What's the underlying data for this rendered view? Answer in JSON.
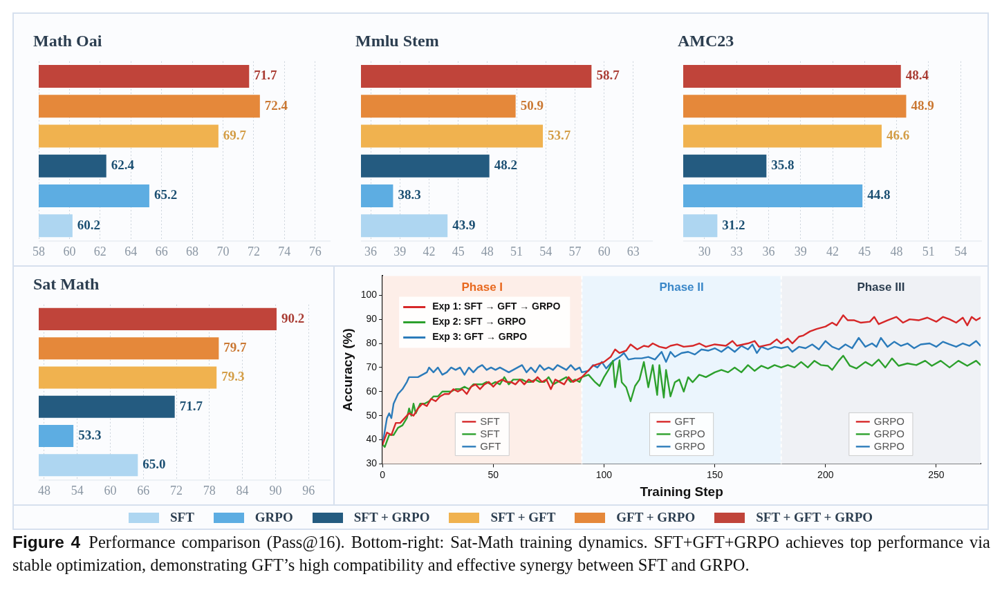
{
  "chart_data": [
    {
      "type": "bar",
      "title": "Math Oai",
      "orientation": "horizontal",
      "categories": [
        null,
        null,
        null,
        null,
        null,
        null
      ],
      "xlim": [
        58,
        77
      ],
      "xticks": [
        58,
        60,
        62,
        64,
        66,
        68,
        70,
        72,
        74,
        76
      ],
      "grid": "x",
      "tick_labels": "x",
      "legend": "bottom",
      "series": [
        {
          "name": "SFT + GFT + GRPO",
          "color": "#c0443a",
          "values": [
            71.7,
            null,
            null,
            null,
            null,
            null
          ],
          "value_labels": [
            "71.7",
            null,
            null,
            null,
            null,
            null
          ]
        },
        {
          "name": "GFT + GRPO",
          "color": "#e5883a",
          "values": [
            null,
            72.4,
            null,
            null,
            null,
            null
          ],
          "value_labels": [
            null,
            "72.4",
            null,
            null,
            null,
            null
          ]
        },
        {
          "name": "SFT + GFT",
          "color": "#f0b24f",
          "values": [
            null,
            null,
            69.7,
            null,
            null,
            null
          ],
          "value_labels": [
            null,
            null,
            "69.7",
            null,
            null,
            null
          ]
        },
        {
          "name": "SFT + GRPO",
          "color": "#245b80",
          "values": [
            null,
            null,
            null,
            62.4,
            null,
            null
          ],
          "value_labels": [
            null,
            null,
            null,
            "62.4",
            null,
            null
          ]
        },
        {
          "name": "GRPO",
          "color": "#5dade2",
          "values": [
            null,
            null,
            null,
            null,
            65.2,
            null
          ],
          "value_labels": [
            null,
            null,
            null,
            null,
            "65.2",
            null
          ]
        },
        {
          "name": "SFT",
          "color": "#aed6f1",
          "values": [
            null,
            null,
            null,
            null,
            null,
            60.2
          ],
          "value_labels": [
            null,
            null,
            null,
            null,
            null,
            "60.2"
          ]
        }
      ]
    },
    {
      "type": "bar",
      "title": "Mmlu Stem",
      "orientation": "horizontal",
      "categories": [
        null,
        null,
        null,
        null,
        null,
        null
      ],
      "xlim": [
        35,
        65
      ],
      "xticks": [
        36,
        39,
        42,
        45,
        48,
        51,
        54,
        57,
        60,
        63
      ],
      "grid": "x",
      "tick_labels": "x",
      "series": [
        {
          "color": "#c0443a",
          "values": [
            58.7,
            null,
            null,
            null,
            null,
            null
          ],
          "value_labels": [
            "58.7",
            null,
            null,
            null,
            null,
            null
          ]
        },
        {
          "color": "#e5883a",
          "values": [
            null,
            50.9,
            null,
            null,
            null,
            null
          ],
          "value_labels": [
            null,
            "50.9",
            null,
            null,
            null,
            null
          ]
        },
        {
          "color": "#f0b24f",
          "values": [
            null,
            null,
            53.7,
            null,
            null,
            null
          ],
          "value_labels": [
            null,
            null,
            "53.7",
            null,
            null,
            null
          ]
        },
        {
          "color": "#245b80",
          "values": [
            null,
            null,
            null,
            48.2,
            null,
            null
          ],
          "value_labels": [
            null,
            null,
            null,
            "48.2",
            null,
            null
          ]
        },
        {
          "color": "#5dade2",
          "values": [
            null,
            null,
            null,
            null,
            38.3,
            null
          ],
          "value_labels": [
            null,
            null,
            null,
            null,
            "38.3",
            null
          ]
        },
        {
          "color": "#aed6f1",
          "values": [
            null,
            null,
            null,
            null,
            null,
            43.9
          ],
          "value_labels": [
            null,
            null,
            null,
            null,
            null,
            "43.9"
          ]
        }
      ]
    },
    {
      "type": "bar",
      "title": "AMC23",
      "orientation": "horizontal",
      "categories": [
        null,
        null,
        null,
        null,
        null,
        null
      ],
      "xlim": [
        28,
        56
      ],
      "xticks": [
        30,
        33,
        36,
        39,
        42,
        45,
        48,
        51,
        54
      ],
      "grid": "x",
      "tick_labels": "x",
      "series": [
        {
          "color": "#c0443a",
          "values": [
            48.4,
            null,
            null,
            null,
            null,
            null
          ],
          "value_labels": [
            "48.4",
            null,
            null,
            null,
            null,
            null
          ]
        },
        {
          "color": "#e5883a",
          "values": [
            null,
            48.9,
            null,
            null,
            null,
            null
          ],
          "value_labels": [
            null,
            "48.9",
            null,
            null,
            null,
            null
          ]
        },
        {
          "color": "#f0b24f",
          "values": [
            null,
            null,
            46.6,
            null,
            null,
            null
          ],
          "value_labels": [
            null,
            null,
            "46.6",
            null,
            null,
            null
          ]
        },
        {
          "color": "#245b80",
          "values": [
            null,
            null,
            null,
            35.8,
            null,
            null
          ],
          "value_labels": [
            null,
            null,
            null,
            "35.8",
            null,
            null
          ]
        },
        {
          "color": "#5dade2",
          "values": [
            null,
            null,
            null,
            null,
            44.8,
            null
          ],
          "value_labels": [
            null,
            null,
            null,
            null,
            "44.8",
            null
          ]
        },
        {
          "color": "#aed6f1",
          "values": [
            null,
            null,
            null,
            null,
            null,
            31.2
          ],
          "value_labels": [
            null,
            null,
            null,
            null,
            null,
            "31.2"
          ]
        }
      ]
    },
    {
      "type": "bar",
      "title": "Sat Math",
      "orientation": "horizontal",
      "categories": [
        null,
        null,
        null,
        null,
        null,
        null
      ],
      "xlim": [
        47,
        100
      ],
      "xticks": [
        48,
        54,
        60,
        66,
        72,
        78,
        84,
        90,
        96
      ],
      "grid": "x",
      "tick_labels": "x",
      "series": [
        {
          "color": "#c0443a",
          "values": [
            90.2,
            null,
            null,
            null,
            null,
            null
          ],
          "value_labels": [
            "90.2",
            null,
            null,
            null,
            null,
            null
          ]
        },
        {
          "color": "#e5883a",
          "values": [
            null,
            79.7,
            null,
            null,
            null,
            null
          ],
          "value_labels": [
            null,
            "79.7",
            null,
            null,
            null,
            null
          ]
        },
        {
          "color": "#f0b24f",
          "values": [
            null,
            null,
            79.3,
            null,
            null,
            null
          ],
          "value_labels": [
            null,
            null,
            "79.3",
            null,
            null,
            null
          ]
        },
        {
          "color": "#245b80",
          "values": [
            null,
            null,
            null,
            71.7,
            null,
            null
          ],
          "value_labels": [
            null,
            null,
            null,
            "71.7",
            null,
            null
          ]
        },
        {
          "color": "#5dade2",
          "values": [
            null,
            null,
            null,
            null,
            53.3,
            null
          ],
          "value_labels": [
            null,
            null,
            null,
            null,
            "53.3",
            null
          ]
        },
        {
          "color": "#aed6f1",
          "values": [
            null,
            null,
            null,
            null,
            null,
            65.0
          ],
          "value_labels": [
            null,
            null,
            null,
            null,
            null,
            "65.0"
          ]
        }
      ]
    },
    {
      "type": "line",
      "xlabel": "Training Step",
      "ylabel": "Accuracy (%)",
      "xlim": [
        0,
        270
      ],
      "xticks": [
        0,
        50,
        100,
        150,
        200,
        250
      ],
      "ylim": [
        30,
        108
      ],
      "yticks": [
        30,
        40,
        50,
        60,
        70,
        80,
        90,
        100
      ],
      "legend": "top left",
      "marker": "none",
      "line_style": "solid",
      "ref_lines": [
        {
          "axis": "x",
          "value": 90,
          "color": "#ffffff",
          "line_style": "dashed"
        },
        {
          "axis": "x",
          "value": 180,
          "color": "#ffffff",
          "line_style": "dashed"
        }
      ],
      "bands": [
        {
          "axis": "x",
          "from": 0,
          "to": 90,
          "label": "Phase I",
          "color": "#fdeee8"
        },
        {
          "axis": "x",
          "from": 90,
          "to": 180,
          "label": "Phase II",
          "color": "#ebf5fd"
        },
        {
          "axis": "x",
          "from": 180,
          "to": 270,
          "label": "Phase III",
          "color": "#eff1f5"
        }
      ],
      "series": [
        {
          "name": "Exp 1: SFT → GFT → GRPO",
          "color": "#d62728",
          "x": [
            0,
            2,
            4,
            6,
            8,
            10,
            12,
            14,
            16,
            18,
            20,
            22,
            24,
            26,
            28,
            30,
            32,
            34,
            36,
            38,
            40,
            42,
            44,
            46,
            48,
            50,
            52,
            54,
            56,
            58,
            60,
            62,
            64,
            66,
            68,
            70,
            72,
            74,
            76,
            78,
            80,
            82,
            84,
            86,
            88,
            90,
            95,
            100,
            103,
            105,
            107,
            110,
            112,
            115,
            118,
            120,
            122,
            125,
            128,
            130,
            133,
            136,
            140,
            143,
            146,
            150,
            155,
            158,
            160,
            165,
            168,
            170,
            175,
            178,
            180,
            183,
            185,
            188,
            190,
            193,
            196,
            200,
            203,
            205,
            208,
            210,
            213,
            216,
            220,
            222,
            224,
            228,
            232,
            235,
            238,
            242,
            246,
            250,
            253,
            256,
            259,
            262,
            264,
            266,
            268,
            270
          ],
          "values": [
            38,
            43,
            42,
            47,
            47,
            49,
            51,
            50,
            53,
            55,
            54,
            57,
            56,
            58,
            59,
            59,
            61,
            60,
            61,
            59,
            62,
            63,
            61,
            63,
            64,
            62,
            64,
            65,
            64,
            64,
            63,
            65,
            63,
            65,
            64,
            66,
            64,
            65,
            61,
            65,
            64,
            63,
            66,
            64,
            65,
            66,
            70.7,
            72.3,
            74.4,
            77.5,
            76,
            77,
            79.6,
            77.5,
            79,
            78.6,
            80,
            78.6,
            78,
            79,
            79.6,
            78.6,
            79,
            80,
            78.6,
            79.6,
            79,
            81,
            79,
            80,
            81,
            78.6,
            79.6,
            81.7,
            80,
            82,
            80,
            82.8,
            83.3,
            85,
            86,
            87,
            88.6,
            87.5,
            91.7,
            89.6,
            89.6,
            88.6,
            89,
            91,
            88,
            89.6,
            91,
            88.6,
            90,
            89.6,
            90.7,
            89,
            91,
            90,
            88.6,
            90.7,
            87.5,
            91,
            89.6,
            90.7
          ]
        },
        {
          "name": "Exp 2: SFT → GRPO",
          "color": "#2ca02c",
          "x": [
            0,
            1,
            3,
            5,
            7,
            9,
            11,
            12,
            13,
            14,
            15,
            17,
            19,
            21,
            23,
            25,
            27,
            29,
            31,
            33,
            35,
            37,
            39,
            41,
            43,
            45,
            47,
            49,
            51,
            53,
            55,
            57,
            59,
            61,
            63,
            65,
            67,
            69,
            71,
            73,
            75,
            77,
            79,
            81,
            83,
            85,
            87,
            89,
            90,
            93,
            96,
            98,
            100,
            102,
            104,
            105,
            107,
            108,
            110,
            112,
            114,
            116,
            118,
            120,
            122,
            124,
            125,
            127,
            128,
            130,
            132,
            134,
            136,
            138,
            140,
            143,
            146,
            150,
            153,
            156,
            159,
            162,
            165,
            168,
            171,
            174,
            177,
            180,
            183,
            186,
            189,
            192,
            195,
            198,
            201,
            203,
            206,
            208,
            211,
            214,
            218,
            221,
            224,
            227,
            230,
            233,
            237,
            241,
            245,
            248,
            252,
            256,
            260,
            264,
            268,
            270
          ],
          "values": [
            38,
            37,
            42,
            42,
            45,
            46,
            49,
            53,
            50,
            55,
            51,
            55,
            55,
            56,
            58,
            58,
            60,
            60,
            60,
            61,
            61,
            62,
            61,
            63,
            63,
            63,
            64,
            63,
            64,
            63,
            66,
            63,
            65,
            65,
            65,
            64,
            64,
            65,
            64,
            64,
            66,
            63,
            64,
            65,
            66,
            64,
            65,
            64,
            66,
            67,
            63.9,
            62.3,
            66,
            69,
            72.8,
            61.8,
            73,
            63.9,
            61.8,
            56,
            62.3,
            65,
            72.3,
            61.8,
            71,
            58.6,
            71,
            57.5,
            69,
            58,
            63.9,
            65,
            60,
            66,
            63.9,
            67,
            66,
            68,
            69,
            68,
            70,
            68,
            71,
            68.6,
            70.7,
            69.6,
            71,
            70,
            71,
            70,
            72.3,
            70,
            72.8,
            71,
            70.7,
            69,
            72.8,
            74.9,
            70.7,
            69.6,
            72.3,
            70.7,
            73.3,
            70,
            73.8,
            70.7,
            71.7,
            71,
            72.8,
            70.7,
            72.8,
            70,
            72.8,
            70.7,
            72.8,
            71
          ]
        },
        {
          "name": "Exp 3: GFT → GRPO",
          "color": "#2b7bba",
          "x": [
            0,
            2,
            3,
            4,
            5,
            7,
            9,
            11,
            12,
            14,
            16,
            18,
            20,
            21,
            23,
            25,
            27,
            29,
            31,
            33,
            35,
            37,
            39,
            41,
            43,
            45,
            47,
            49,
            51,
            53,
            55,
            57,
            59,
            61,
            63,
            65,
            67,
            69,
            71,
            73,
            75,
            77,
            79,
            81,
            83,
            85,
            87,
            89,
            90,
            93,
            95,
            97,
            99,
            101,
            103,
            105,
            107,
            109,
            111,
            114,
            117,
            120,
            123,
            126,
            128,
            130,
            132,
            135,
            138,
            141,
            144,
            147,
            150,
            153,
            156,
            159,
            162,
            165,
            167,
            169,
            171,
            174,
            177,
            180,
            183,
            185,
            188,
            191,
            194,
            197,
            200,
            203,
            206,
            209,
            212,
            215,
            218,
            221,
            223,
            225,
            228,
            231,
            234,
            237,
            240,
            243,
            247,
            250,
            253,
            256,
            259,
            262,
            265,
            268,
            270
          ],
          "values": [
            38,
            49,
            51,
            49,
            55,
            59,
            61,
            64,
            66,
            66,
            66,
            67,
            68,
            70,
            68,
            70,
            67,
            68,
            70,
            69,
            70,
            67,
            70,
            68,
            70,
            71,
            69,
            70,
            69,
            70,
            69,
            68,
            69,
            70,
            71,
            68,
            70,
            68,
            71,
            69,
            70,
            69,
            71,
            70,
            69,
            71,
            69,
            70,
            68,
            68.6,
            71,
            70,
            72.3,
            69.6,
            71.7,
            73.3,
            74.4,
            76,
            73.3,
            73.8,
            73.8,
            74.4,
            73.3,
            76.5,
            72.3,
            76.5,
            74.4,
            76,
            76.5,
            75.4,
            77.5,
            77,
            78,
            76.5,
            78.6,
            76.5,
            79,
            77.5,
            79.6,
            76,
            78.6,
            77.5,
            78.6,
            78,
            78.6,
            76.5,
            78.6,
            78,
            79.6,
            77.5,
            81,
            78.6,
            77.5,
            79.6,
            78,
            82.3,
            78.6,
            80,
            78.6,
            82.3,
            78.6,
            80.7,
            79,
            80,
            78,
            79.6,
            80,
            78.6,
            80.7,
            79.6,
            78.6,
            80,
            79,
            81,
            79
          ]
        }
      ],
      "annotations": [
        "SFT",
        "SFT",
        "GFT",
        "GFT",
        "GRPO",
        "GRPO",
        "GRPO",
        "GRPO",
        "GRPO",
        "Figure 4  Performance comparison (Pass@16). Bottom-right: Sat-Math training dynamics. SFT+GFT+GRPO achieves top performance via stable optimization, demonstrating GFT’s high compatibility and effective synergy between SFT and GRPO."
      ]
    }
  ]
}
